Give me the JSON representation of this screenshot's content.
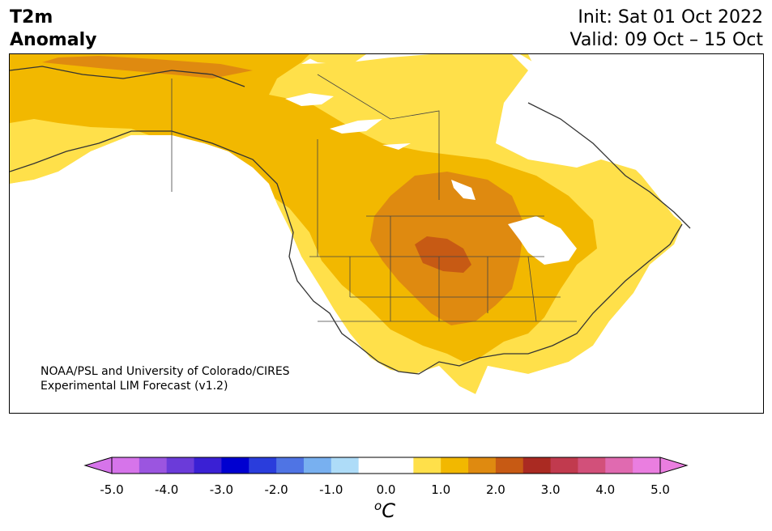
{
  "title": {
    "line1": "T2m",
    "line2": "Anomaly"
  },
  "info": {
    "init": "Init: Sat 01 Oct 2022",
    "valid": "Valid: 09 Oct – 15 Oct"
  },
  "credit": {
    "line1": "NOAA/PSL and University of Colorado/CIRES",
    "line2": "Experimental LIM Forecast (v1.2)"
  },
  "colorbar": {
    "ticks": [
      "-5.0",
      "-4.0",
      "-3.0",
      "-2.0",
      "-1.0",
      "0.0",
      "1.0",
      "2.0",
      "3.0",
      "4.0",
      "5.0"
    ],
    "unit": "C",
    "unit_prefix": "o",
    "colors": [
      "#d674ea",
      "#9b55e0",
      "#6b3bd9",
      "#3a20d4",
      "#0000d0",
      "#2a3ddc",
      "#4f74e4",
      "#78b0f0",
      "#aedcf8",
      "#ffffff",
      "#ffffff",
      "#ffe04a",
      "#f2b800",
      "#df8a10",
      "#c75a14",
      "#aa2a22",
      "#c13a4e",
      "#d2507a",
      "#e06ab0",
      "#ea7ee0"
    ]
  },
  "map": {
    "fill_colors": {
      "yellow": "#ffe04a",
      "gold": "#f2b800",
      "orange": "#df8a10",
      "dark_orange": "#c75a14"
    }
  }
}
